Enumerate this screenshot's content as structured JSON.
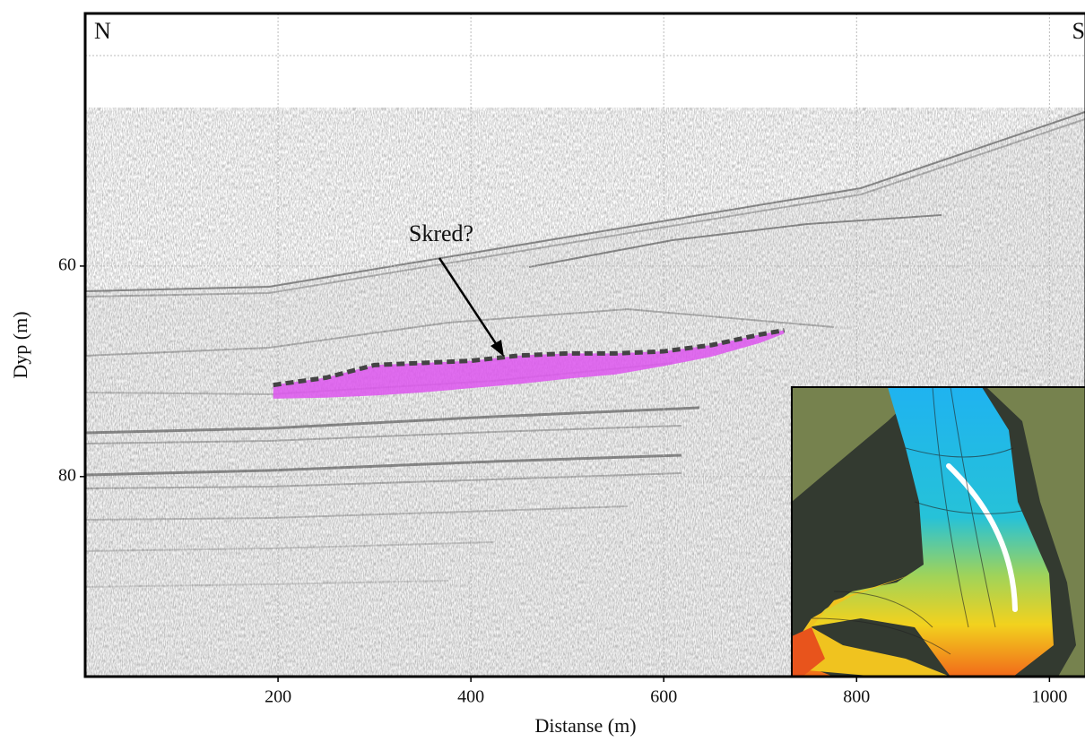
{
  "chart_data": {
    "type": "seismic-profile",
    "xlabel": "Distanse (m)",
    "ylabel": "Dyp (m)",
    "xlim": [
      0,
      1035
    ],
    "ylim": [
      36,
      99
    ],
    "y_inverted": true,
    "xticks": [
      200,
      400,
      600,
      800,
      1000
    ],
    "yticks": [
      60,
      80
    ],
    "grid": true,
    "corner_left": "N",
    "corner_right": "S",
    "slide": {
      "label": "Skred?",
      "color": "#dd55ee",
      "x": [
        195,
        250,
        300,
        350,
        400,
        450,
        500,
        550,
        600,
        650,
        700,
        725
      ],
      "top": [
        71.3,
        70.6,
        69.4,
        69.2,
        69.0,
        68.5,
        68.3,
        68.3,
        68.1,
        67.5,
        66.5,
        66.1
      ],
      "bottom": [
        72.6,
        72.5,
        72.3,
        72.0,
        71.6,
        71.2,
        70.7,
        70.3,
        69.5,
        68.6,
        67.3,
        66.4
      ]
    }
  }
}
